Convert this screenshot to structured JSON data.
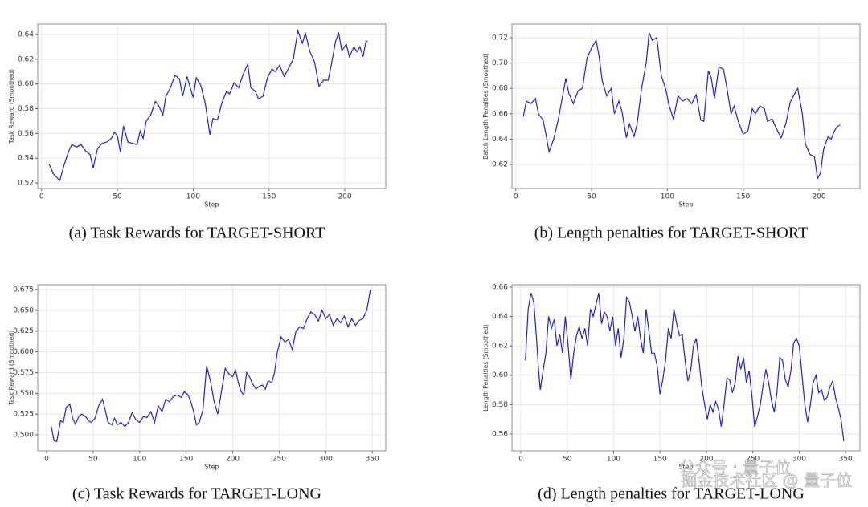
{
  "chart_data": [
    {
      "type": "line",
      "xlabel": "Step",
      "ylabel": "Task Reward (Smoothed)",
      "caption": "(a) Task Rewards for TARGET-SHORT",
      "x": [
        5,
        8,
        12,
        15,
        18,
        20,
        23,
        26,
        29,
        32,
        34,
        37,
        40,
        43,
        46,
        48,
        50,
        52,
        54,
        57,
        60,
        63,
        65,
        67,
        69,
        72,
        75,
        77,
        80,
        82,
        85,
        88,
        91,
        93,
        96,
        98,
        100,
        102,
        105,
        108,
        111,
        113,
        116,
        119,
        122,
        124,
        127,
        130,
        133,
        136,
        138,
        141,
        143,
        146,
        149,
        152,
        154,
        157,
        160,
        163,
        166,
        169,
        172,
        174,
        177,
        180,
        183,
        186,
        189,
        191,
        194,
        196,
        198,
        201,
        203,
        206,
        208,
        210,
        212,
        214,
        215
      ],
      "series": [
        {
          "color": "#1f1fd6",
          "values": [
            0.535,
            0.527,
            0.522,
            0.535,
            0.546,
            0.551,
            0.549,
            0.551,
            0.546,
            0.543,
            0.532,
            0.548,
            0.552,
            0.553,
            0.556,
            0.561,
            0.558,
            0.545,
            0.566,
            0.553,
            0.552,
            0.551,
            0.562,
            0.556,
            0.57,
            0.575,
            0.586,
            0.583,
            0.575,
            0.59,
            0.597,
            0.607,
            0.604,
            0.59,
            0.606,
            0.597,
            0.589,
            0.605,
            0.599,
            0.584,
            0.559,
            0.572,
            0.571,
            0.585,
            0.594,
            0.592,
            0.601,
            0.597,
            0.608,
            0.616,
            0.597,
            0.594,
            0.588,
            0.59,
            0.605,
            0.612,
            0.61,
            0.615,
            0.606,
            0.613,
            0.62,
            0.643,
            0.633,
            0.641,
            0.626,
            0.618,
            0.598,
            0.603,
            0.603,
            0.615,
            0.635,
            0.641,
            0.627,
            0.632,
            0.622,
            0.63,
            0.626,
            0.63,
            0.622,
            0.635,
            0.634
          ]
        }
      ],
      "xlim": [
        -2.5,
        227
      ],
      "ylim": [
        0.5155,
        0.6484
      ],
      "xticks": [
        0,
        50,
        100,
        150,
        200
      ],
      "yticks": [
        0.52,
        0.54,
        0.56,
        0.58,
        {
          "value": 0.6,
          "label": "0.60"
        },
        0.62,
        0.64
      ],
      "grid": true
    },
    {
      "type": "line",
      "xlabel": "Step",
      "ylabel": "Batch Length Penalties (Smoothed)",
      "caption": "(b) Length penalties for TARGET-SHORT",
      "x": [
        5,
        7,
        10,
        13,
        15,
        18,
        20,
        22,
        25,
        28,
        30,
        33,
        35,
        38,
        41,
        44,
        47,
        50,
        53,
        55,
        57,
        60,
        63,
        65,
        68,
        70,
        73,
        75,
        78,
        80,
        83,
        86,
        88,
        90,
        93,
        96,
        99,
        101,
        104,
        107,
        110,
        113,
        116,
        119,
        122,
        124,
        127,
        129,
        131,
        134,
        137,
        139,
        142,
        144,
        147,
        150,
        153,
        156,
        158,
        161,
        164,
        166,
        169,
        172,
        175,
        178,
        181,
        184,
        186,
        189,
        191,
        194,
        197,
        199,
        201,
        203,
        206,
        208,
        210,
        212,
        214
      ],
      "series": [
        {
          "color": "#1f1fd6",
          "values": [
            0.658,
            0.67,
            0.668,
            0.672,
            0.66,
            0.655,
            0.643,
            0.63,
            0.64,
            0.655,
            0.668,
            0.688,
            0.676,
            0.668,
            0.678,
            0.68,
            0.704,
            0.712,
            0.718,
            0.705,
            0.686,
            0.674,
            0.68,
            0.66,
            0.67,
            0.662,
            0.641,
            0.652,
            0.642,
            0.652,
            0.68,
            0.7,
            0.724,
            0.718,
            0.72,
            0.69,
            0.679,
            0.667,
            0.656,
            0.674,
            0.67,
            0.672,
            0.668,
            0.675,
            0.655,
            0.654,
            0.694,
            0.688,
            0.672,
            0.697,
            0.695,
            0.682,
            0.66,
            0.666,
            0.653,
            0.644,
            0.646,
            0.664,
            0.66,
            0.666,
            0.664,
            0.654,
            0.656,
            0.648,
            0.641,
            0.652,
            0.669,
            0.676,
            0.68,
            0.66,
            0.636,
            0.628,
            0.626,
            0.609,
            0.613,
            0.632,
            0.642,
            0.64,
            0.646,
            0.65,
            0.651
          ]
        }
      ],
      "xlim": [
        -2.5,
        227
      ],
      "ylim": [
        0.601,
        0.7308
      ],
      "xticks": [
        0,
        50,
        100,
        150,
        200
      ],
      "yticks": [
        0.62,
        0.64,
        0.66,
        0.68,
        {
          "value": 0.7,
          "label": "0.70"
        },
        0.72
      ],
      "grid": true
    },
    {
      "type": "line",
      "xlabel": "Step",
      "ylabel": "Task Reward (Smoothed)",
      "caption": "(c) Task Rewards for TARGET-LONG",
      "x": [
        5,
        8,
        11,
        15,
        18,
        21,
        25,
        28,
        31,
        35,
        38,
        42,
        45,
        48,
        52,
        56,
        60,
        63,
        66,
        70,
        73,
        76,
        80,
        84,
        88,
        92,
        96,
        100,
        104,
        108,
        112,
        116,
        120,
        124,
        128,
        132,
        136,
        140,
        145,
        148,
        152,
        155,
        158,
        161,
        164,
        168,
        172,
        176,
        180,
        184,
        188,
        192,
        196,
        200,
        203,
        206,
        209,
        212,
        215,
        218,
        221,
        225,
        228,
        232,
        235,
        238,
        242,
        245,
        248,
        252,
        256,
        260,
        264,
        268,
        272,
        276,
        280,
        284,
        288,
        292,
        296,
        300,
        304,
        308,
        312,
        316,
        320,
        324,
        328,
        332,
        336,
        340,
        344,
        348
      ],
      "series": [
        {
          "color": "#1f1fd6",
          "values": [
            0.51,
            0.493,
            0.492,
            0.517,
            0.515,
            0.533,
            0.537,
            0.52,
            0.513,
            0.523,
            0.525,
            0.522,
            0.517,
            0.515,
            0.52,
            0.535,
            0.543,
            0.53,
            0.515,
            0.512,
            0.52,
            0.512,
            0.515,
            0.51,
            0.515,
            0.527,
            0.518,
            0.515,
            0.522,
            0.521,
            0.528,
            0.515,
            0.535,
            0.528,
            0.543,
            0.54,
            0.546,
            0.548,
            0.545,
            0.552,
            0.548,
            0.54,
            0.528,
            0.512,
            0.515,
            0.53,
            0.583,
            0.565,
            0.54,
            0.525,
            0.553,
            0.58,
            0.573,
            0.57,
            0.578,
            0.563,
            0.552,
            0.548,
            0.575,
            0.57,
            0.562,
            0.555,
            0.558,
            0.56,
            0.555,
            0.565,
            0.563,
            0.575,
            0.6,
            0.618,
            0.612,
            0.615,
            0.603,
            0.625,
            0.63,
            0.628,
            0.64,
            0.648,
            0.645,
            0.637,
            0.65,
            0.64,
            0.645,
            0.632,
            0.64,
            0.635,
            0.643,
            0.63,
            0.64,
            0.632,
            0.638,
            0.64,
            0.65,
            0.675
          ]
        }
      ],
      "xlim": [
        -9.5,
        364.5
      ],
      "ylim": [
        0.4807,
        0.6808
      ],
      "xticks": [
        0,
        50,
        100,
        150,
        200,
        250,
        300,
        350
      ],
      "yticks": [
        {
          "value": 0.5,
          "label": "0.500"
        },
        0.525,
        {
          "value": 0.55,
          "label": "0.550"
        },
        0.575,
        {
          "value": 0.6,
          "label": "0.600"
        },
        0.625,
        {
          "value": 0.65,
          "label": "0.650"
        },
        0.675
      ],
      "grid": true
    },
    {
      "type": "line",
      "xlabel": "Step",
      "ylabel": "Length Penalties (Smoothed)",
      "caption": "(d) Length penalties for TARGET-LONG",
      "x": [
        5,
        8,
        11,
        14,
        17,
        19,
        21,
        24,
        27,
        30,
        33,
        36,
        39,
        42,
        45,
        48,
        51,
        54,
        57,
        60,
        63,
        66,
        69,
        72,
        75,
        78,
        81,
        84,
        87,
        90,
        93,
        96,
        99,
        102,
        105,
        108,
        111,
        114,
        117,
        120,
        123,
        126,
        129,
        132,
        135,
        138,
        141,
        144,
        147,
        150,
        153,
        156,
        159,
        162,
        165,
        168,
        171,
        174,
        177,
        180,
        183,
        186,
        189,
        192,
        195,
        198,
        201,
        204,
        207,
        210,
        213,
        216,
        219,
        222,
        225,
        228,
        231,
        234,
        237,
        240,
        243,
        246,
        249,
        252,
        255,
        258,
        261,
        264,
        267,
        270,
        273,
        276,
        279,
        282,
        285,
        288,
        291,
        294,
        297,
        300,
        303,
        306,
        309,
        312,
        315,
        318,
        321,
        324,
        327,
        330,
        333,
        336,
        339,
        342,
        345,
        348
      ],
      "series": [
        {
          "color": "#1f1fd6",
          "values": [
            0.61,
            0.645,
            0.656,
            0.65,
            0.625,
            0.605,
            0.59,
            0.603,
            0.615,
            0.64,
            0.632,
            0.638,
            0.62,
            0.628,
            0.615,
            0.64,
            0.62,
            0.597,
            0.615,
            0.627,
            0.633,
            0.625,
            0.632,
            0.62,
            0.645,
            0.64,
            0.648,
            0.656,
            0.635,
            0.643,
            0.64,
            0.63,
            0.64,
            0.62,
            0.632,
            0.612,
            0.625,
            0.653,
            0.65,
            0.64,
            0.63,
            0.64,
            0.625,
            0.615,
            0.645,
            0.63,
            0.615,
            0.615,
            0.606,
            0.587,
            0.597,
            0.61,
            0.632,
            0.625,
            0.645,
            0.635,
            0.627,
            0.628,
            0.61,
            0.596,
            0.603,
            0.62,
            0.625,
            0.61,
            0.592,
            0.58,
            0.57,
            0.58,
            0.575,
            0.582,
            0.577,
            0.565,
            0.58,
            0.598,
            0.597,
            0.588,
            0.595,
            0.613,
            0.604,
            0.612,
            0.595,
            0.603,
            0.586,
            0.565,
            0.572,
            0.58,
            0.593,
            0.604,
            0.595,
            0.583,
            0.575,
            0.588,
            0.612,
            0.61,
            0.597,
            0.592,
            0.603,
            0.622,
            0.625,
            0.62,
            0.6,
            0.58,
            0.568,
            0.58,
            0.595,
            0.6,
            0.588,
            0.59,
            0.583,
            0.585,
            0.592,
            0.596,
            0.585,
            0.578,
            0.57,
            0.555
          ]
        }
      ],
      "xlim": [
        -9.5,
        365.4
      ],
      "ylim": [
        0.5485,
        0.6616
      ],
      "xticks": [
        0,
        50,
        100,
        150,
        200,
        250,
        300,
        350
      ],
      "yticks": [
        0.56,
        0.58,
        {
          "value": 0.6,
          "label": "0.60"
        },
        0.62,
        0.64,
        0.66
      ],
      "grid": true
    }
  ],
  "watermarks": [
    "公众号 · 量子位",
    "掘金技术社区 @ 量子位"
  ]
}
